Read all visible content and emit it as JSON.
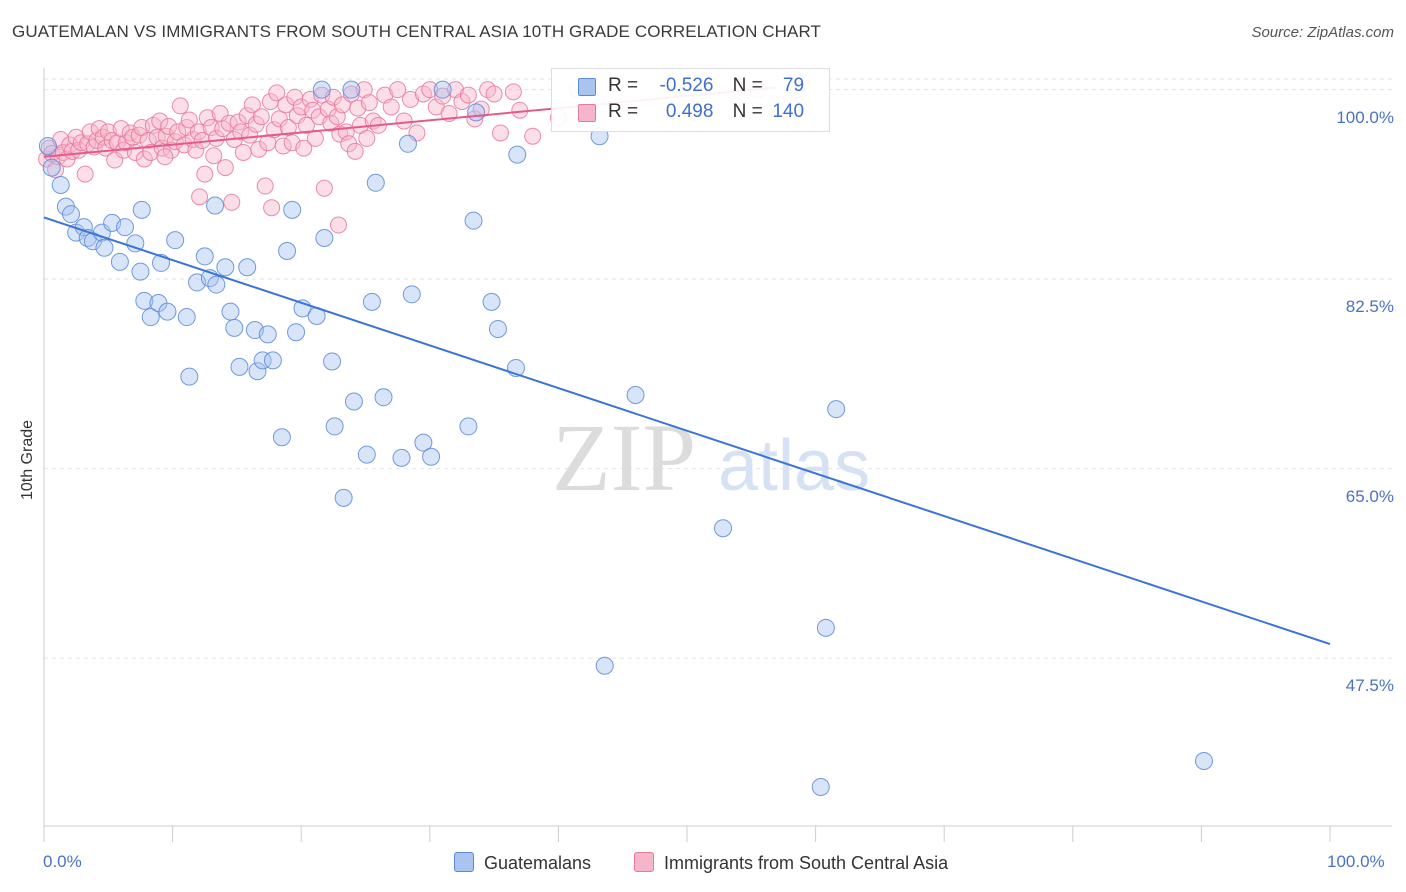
{
  "title": "GUATEMALAN VS IMMIGRANTS FROM SOUTH CENTRAL ASIA 10TH GRADE CORRELATION CHART",
  "source": "Source: ZipAtlas.com",
  "watermark": {
    "zip": "ZIP",
    "atlas": "atlas"
  },
  "colors": {
    "blue_fill": "#a9c4ef",
    "blue_stroke": "#5b8ad8",
    "blue_line": "#3a74d6",
    "pink_fill": "#f6b6ca",
    "pink_stroke": "#e8789e",
    "pink_line": "#e45a8a",
    "axis_text": "#4a72c4",
    "grid": "#e4e4e4"
  },
  "legend": {
    "r_label": "R =",
    "n_label": "N =",
    "rows": [
      {
        "r": "-0.526",
        "n": "79"
      },
      {
        "r": "0.498",
        "n": "140"
      }
    ]
  },
  "chart_data": {
    "type": "scatter",
    "title": "GUATEMALAN VS IMMIGRANTS FROM SOUTH CENTRAL ASIA 10TH GRADE CORRELATION CHART",
    "xlabel": "",
    "ylabel": "10th Grade",
    "xlim": [
      0,
      100
    ],
    "ylim": [
      32,
      102
    ],
    "x_tick_labels": [
      "0.0%",
      "100.0%"
    ],
    "y_ticks": [
      100.0,
      82.5,
      65.0,
      47.5
    ],
    "y_tick_labels": [
      "100.0%",
      "82.5%",
      "65.0%",
      "47.5%"
    ],
    "grid": true,
    "legend_position": "top-center",
    "series": [
      {
        "name": "Guatemalans",
        "r": -0.526,
        "n": 79,
        "trend": {
          "x": [
            0,
            100
          ],
          "y": [
            88.2,
            48.8
          ]
        },
        "points": [
          [
            0.3,
            94.8
          ],
          [
            0.6,
            92.8
          ],
          [
            1.3,
            91.2
          ],
          [
            1.7,
            89.2
          ],
          [
            2.1,
            88.5
          ],
          [
            2.5,
            86.8
          ],
          [
            3.1,
            87.3
          ],
          [
            3.4,
            86.3
          ],
          [
            3.8,
            86.0
          ],
          [
            4.5,
            86.8
          ],
          [
            4.7,
            85.4
          ],
          [
            5.3,
            87.7
          ],
          [
            5.9,
            84.1
          ],
          [
            6.3,
            87.3
          ],
          [
            7.1,
            85.8
          ],
          [
            7.5,
            83.2
          ],
          [
            7.6,
            88.9
          ],
          [
            7.8,
            80.5
          ],
          [
            8.3,
            79.0
          ],
          [
            8.9,
            80.3
          ],
          [
            9.1,
            84.0
          ],
          [
            9.6,
            79.5
          ],
          [
            10.2,
            86.1
          ],
          [
            11.1,
            79.0
          ],
          [
            11.3,
            73.5
          ],
          [
            11.9,
            82.2
          ],
          [
            12.5,
            84.6
          ],
          [
            12.9,
            82.6
          ],
          [
            13.3,
            89.3
          ],
          [
            13.4,
            82.0
          ],
          [
            14.1,
            83.6
          ],
          [
            14.5,
            79.5
          ],
          [
            14.8,
            78.0
          ],
          [
            15.2,
            74.4
          ],
          [
            15.8,
            83.6
          ],
          [
            16.4,
            77.8
          ],
          [
            16.6,
            74.0
          ],
          [
            17.0,
            75.0
          ],
          [
            17.4,
            77.4
          ],
          [
            17.8,
            75.0
          ],
          [
            18.5,
            67.9
          ],
          [
            18.9,
            85.1
          ],
          [
            19.3,
            88.9
          ],
          [
            19.6,
            77.6
          ],
          [
            20.1,
            79.8
          ],
          [
            21.2,
            79.1
          ],
          [
            21.8,
            86.3
          ],
          [
            22.4,
            74.9
          ],
          [
            22.6,
            68.9
          ],
          [
            23.3,
            62.3
          ],
          [
            24.1,
            71.2
          ],
          [
            25.1,
            66.3
          ],
          [
            25.5,
            80.4
          ],
          [
            25.8,
            91.4
          ],
          [
            26.4,
            71.6
          ],
          [
            27.8,
            66.0
          ],
          [
            28.6,
            81.1
          ],
          [
            29.5,
            67.4
          ],
          [
            30.1,
            66.1
          ],
          [
            33.0,
            68.9
          ],
          [
            33.4,
            87.9
          ],
          [
            34.8,
            80.4
          ],
          [
            35.3,
            77.9
          ],
          [
            36.7,
            74.3
          ],
          [
            43.2,
            95.7
          ],
          [
            43.6,
            46.8
          ],
          [
            46.0,
            71.8
          ],
          [
            52.8,
            59.5
          ],
          [
            60.4,
            35.6
          ],
          [
            60.8,
            50.3
          ],
          [
            61.6,
            70.5
          ],
          [
            90.2,
            38.0
          ],
          [
            33.6,
            97.9
          ],
          [
            36.8,
            94.0
          ],
          [
            21.6,
            100.0
          ],
          [
            23.9,
            100.0
          ],
          [
            31.0,
            100.0
          ],
          [
            58.5,
            100.0
          ],
          [
            28.3,
            95.0
          ]
        ]
      },
      {
        "name": "Immigrants from South Central Asia",
        "r": 0.498,
        "n": 140,
        "trend": {
          "x": [
            0,
            57
          ],
          "y": [
            93.8,
            100.2
          ]
        },
        "points": [
          [
            0.2,
            93.6
          ],
          [
            0.4,
            94.6
          ],
          [
            0.6,
            94.1
          ],
          [
            0.9,
            92.6
          ],
          [
            1.1,
            93.8
          ],
          [
            1.3,
            95.4
          ],
          [
            1.5,
            94.2
          ],
          [
            1.8,
            93.6
          ],
          [
            2.0,
            94.9
          ],
          [
            2.2,
            94.3
          ],
          [
            2.5,
            95.6
          ],
          [
            2.7,
            94.4
          ],
          [
            2.9,
            95.1
          ],
          [
            3.2,
            92.2
          ],
          [
            3.4,
            95.0
          ],
          [
            3.6,
            96.1
          ],
          [
            3.9,
            94.7
          ],
          [
            4.1,
            95.3
          ],
          [
            4.3,
            96.4
          ],
          [
            4.6,
            95.6
          ],
          [
            4.8,
            94.6
          ],
          [
            5.0,
            96.1
          ],
          [
            5.3,
            95.3
          ],
          [
            5.5,
            93.5
          ],
          [
            5.7,
            95.1
          ],
          [
            6.0,
            96.4
          ],
          [
            6.2,
            94.4
          ],
          [
            6.4,
            95.1
          ],
          [
            6.7,
            96.0
          ],
          [
            6.9,
            95.6
          ],
          [
            7.1,
            94.2
          ],
          [
            7.4,
            95.8
          ],
          [
            7.6,
            96.5
          ],
          [
            7.8,
            93.6
          ],
          [
            8.1,
            95.3
          ],
          [
            8.3,
            94.2
          ],
          [
            8.5,
            96.7
          ],
          [
            8.8,
            95.6
          ],
          [
            9.0,
            97.1
          ],
          [
            9.2,
            94.6
          ],
          [
            9.5,
            95.7
          ],
          [
            9.7,
            96.6
          ],
          [
            9.9,
            94.4
          ],
          [
            10.2,
            95.2
          ],
          [
            10.4,
            96.1
          ],
          [
            10.6,
            98.5
          ],
          [
            10.9,
            94.9
          ],
          [
            11.1,
            96.5
          ],
          [
            11.3,
            97.2
          ],
          [
            11.6,
            95.4
          ],
          [
            11.8,
            94.4
          ],
          [
            12.0,
            96.1
          ],
          [
            12.3,
            95.3
          ],
          [
            12.5,
            92.2
          ],
          [
            12.7,
            97.4
          ],
          [
            13.0,
            96.5
          ],
          [
            13.2,
            93.9
          ],
          [
            13.4,
            95.5
          ],
          [
            13.7,
            97.8
          ],
          [
            13.9,
            96.4
          ],
          [
            14.1,
            92.8
          ],
          [
            14.4,
            96.9
          ],
          [
            14.6,
            89.6
          ],
          [
            14.8,
            95.4
          ],
          [
            15.1,
            97.0
          ],
          [
            15.3,
            96.1
          ],
          [
            15.5,
            94.2
          ],
          [
            15.8,
            97.6
          ],
          [
            16.0,
            95.8
          ],
          [
            16.2,
            98.6
          ],
          [
            16.5,
            96.8
          ],
          [
            16.7,
            94.5
          ],
          [
            16.9,
            97.5
          ],
          [
            17.2,
            91.1
          ],
          [
            17.4,
            95.1
          ],
          [
            17.6,
            98.9
          ],
          [
            17.9,
            96.3
          ],
          [
            18.1,
            99.7
          ],
          [
            18.3,
            97.3
          ],
          [
            18.6,
            94.8
          ],
          [
            18.8,
            98.6
          ],
          [
            19.0,
            96.5
          ],
          [
            19.3,
            95.1
          ],
          [
            19.5,
            99.3
          ],
          [
            19.7,
            97.6
          ],
          [
            20.0,
            98.4
          ],
          [
            20.2,
            94.6
          ],
          [
            20.4,
            96.7
          ],
          [
            20.7,
            99.1
          ],
          [
            20.9,
            98.1
          ],
          [
            21.1,
            95.5
          ],
          [
            21.4,
            97.5
          ],
          [
            21.6,
            99.5
          ],
          [
            21.8,
            90.9
          ],
          [
            22.1,
            98.2
          ],
          [
            22.3,
            96.9
          ],
          [
            22.5,
            99.3
          ],
          [
            22.8,
            97.5
          ],
          [
            23.0,
            95.9
          ],
          [
            23.2,
            98.6
          ],
          [
            23.5,
            96.1
          ],
          [
            23.7,
            95.0
          ],
          [
            23.9,
            99.6
          ],
          [
            24.2,
            94.3
          ],
          [
            24.4,
            98.3
          ],
          [
            24.6,
            96.7
          ],
          [
            24.9,
            100.0
          ],
          [
            25.1,
            95.5
          ],
          [
            25.3,
            98.8
          ],
          [
            25.6,
            97.1
          ],
          [
            26.0,
            96.7
          ],
          [
            26.5,
            99.5
          ],
          [
            27.0,
            98.4
          ],
          [
            27.5,
            100.0
          ],
          [
            28.0,
            97.1
          ],
          [
            28.5,
            99.1
          ],
          [
            29.0,
            96.0
          ],
          [
            29.5,
            99.6
          ],
          [
            30.0,
            100.0
          ],
          [
            30.5,
            98.4
          ],
          [
            31.0,
            99.4
          ],
          [
            31.5,
            97.8
          ],
          [
            32.0,
            100.0
          ],
          [
            32.5,
            98.9
          ],
          [
            33.0,
            99.5
          ],
          [
            33.5,
            97.3
          ],
          [
            34.0,
            98.2
          ],
          [
            34.5,
            100.0
          ],
          [
            35.0,
            99.6
          ],
          [
            35.5,
            96.0
          ],
          [
            36.5,
            99.8
          ],
          [
            37.0,
            98.1
          ],
          [
            38.0,
            95.7
          ],
          [
            40.0,
            97.4
          ],
          [
            41.5,
            100.0
          ],
          [
            55.5,
            100.0
          ],
          [
            22.9,
            87.5
          ],
          [
            17.7,
            89.1
          ],
          [
            12.1,
            90.1
          ],
          [
            9.4,
            93.8
          ]
        ]
      }
    ]
  },
  "bottom_legend": [
    {
      "label": "Guatemalans"
    },
    {
      "label": "Immigrants from South Central Asia"
    }
  ]
}
